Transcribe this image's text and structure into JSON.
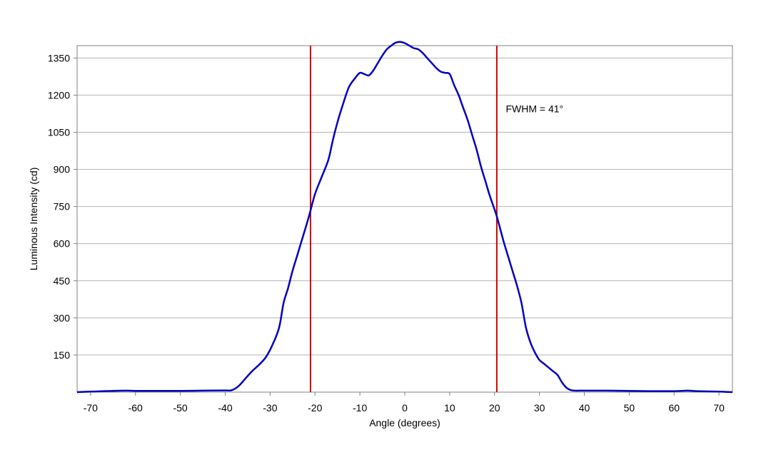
{
  "chart_data": {
    "type": "line",
    "title": "",
    "xlabel": "Angle (degrees)",
    "ylabel": "Luminous Intensity (cd)",
    "xlim": [
      -73,
      73
    ],
    "ylim": [
      0,
      1350
    ],
    "xticks": [
      -70,
      -60,
      -50,
      -40,
      -30,
      -20,
      -10,
      0,
      10,
      20,
      30,
      40,
      50,
      60,
      70
    ],
    "yticks": [
      150,
      300,
      450,
      600,
      750,
      900,
      1050,
      1200,
      1350
    ],
    "grid": "horizontal",
    "series": [
      {
        "color": "#0000c0",
        "x": [
          -73,
          -70,
          -67,
          -65,
          -62,
          -60,
          -55,
          -50,
          -45,
          -40,
          -38.5,
          -37,
          -35.5,
          -34,
          -32.5,
          -31,
          -29.5,
          -28,
          -27,
          -26,
          -25,
          -24,
          -23,
          -22,
          -21.2,
          -20,
          -18.5,
          -17,
          -16,
          -15,
          -14,
          -12.5,
          -11,
          -10,
          -9,
          -8,
          -7,
          -6,
          -5,
          -4,
          -3,
          -2,
          -1,
          0,
          1,
          2,
          3,
          4,
          5,
          6,
          7,
          8,
          9,
          10,
          11,
          12,
          13,
          14,
          15,
          16,
          17,
          18,
          19,
          20.5,
          22,
          23,
          24,
          25,
          26,
          27,
          28,
          29,
          30,
          31,
          32,
          33,
          34,
          35,
          36,
          37,
          38,
          39,
          40,
          45,
          50,
          55,
          60,
          63,
          65,
          70,
          73
        ],
        "y": [
          0,
          2,
          4,
          5,
          6,
          5,
          5,
          5,
          6,
          7,
          8,
          25,
          55,
          85,
          110,
          140,
          190,
          260,
          360,
          420,
          490,
          550,
          610,
          670,
          720,
          800,
          870,
          940,
          1020,
          1090,
          1150,
          1230,
          1270,
          1290,
          1285,
          1280,
          1300,
          1330,
          1360,
          1385,
          1400,
          1412,
          1415,
          1410,
          1400,
          1390,
          1385,
          1370,
          1350,
          1330,
          1310,
          1295,
          1290,
          1285,
          1240,
          1200,
          1150,
          1100,
          1040,
          980,
          910,
          850,
          790,
          710,
          610,
          550,
          490,
          430,
          360,
          260,
          200,
          160,
          130,
          115,
          100,
          85,
          70,
          40,
          18,
          8,
          6,
          6,
          6,
          6,
          5,
          4,
          4,
          6,
          4,
          2,
          0
        ]
      }
    ],
    "annotations": [
      {
        "text": "FWHM = 41°",
        "x": 22.5,
        "y": 1130
      }
    ],
    "reference_lines": [
      {
        "axis": "x",
        "value": -21,
        "color": "#d00000"
      },
      {
        "axis": "x",
        "value": 20.5,
        "color": "#d00000"
      }
    ]
  }
}
